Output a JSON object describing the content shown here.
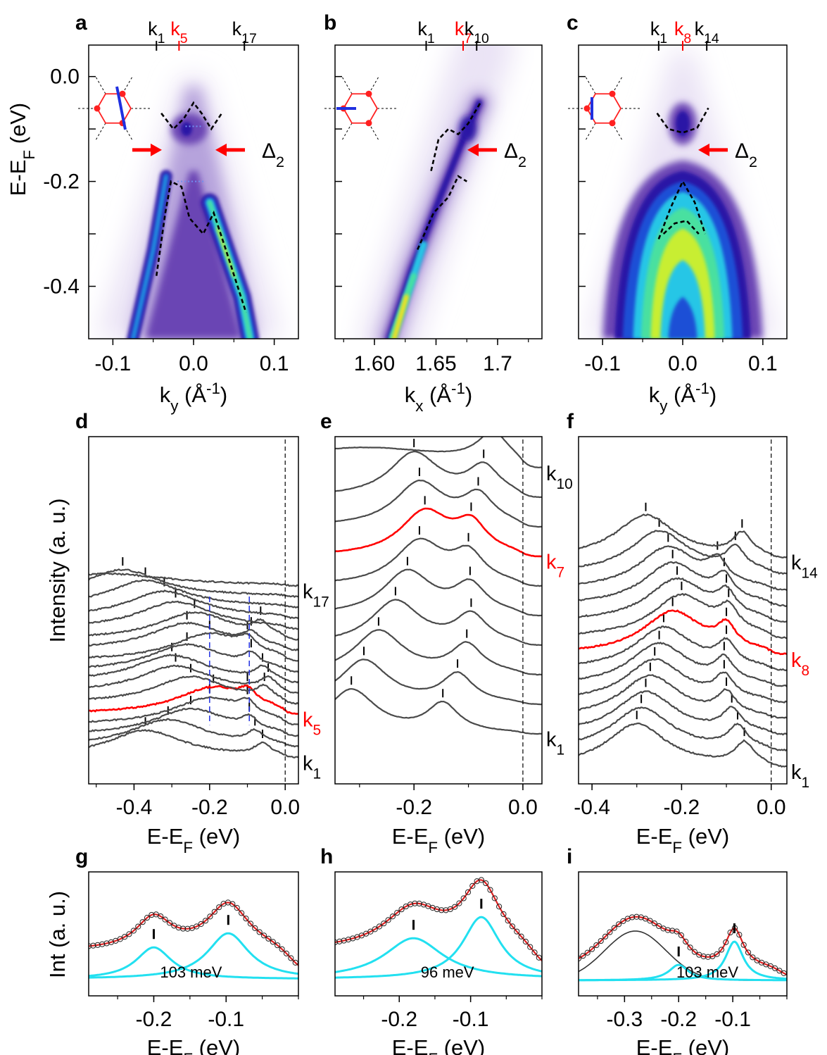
{
  "figure": {
    "panel_letters": [
      "a",
      "b",
      "c",
      "d",
      "e",
      "f",
      "g",
      "h",
      "i"
    ],
    "colors": {
      "axis": "#000000",
      "curve": "#4a4a4a",
      "highlight": "#ff0000",
      "fit_component": "#22e0f0",
      "fit_total": "#e02020",
      "background_fit": "#333333",
      "arrow": "#ff0000",
      "bz_hexagon": "#ff2020",
      "cut_line": "#2030e0",
      "band_dash": "#000000",
      "intensity_map": [
        "#ffffff",
        "#eae3f5",
        "#b6a3dc",
        "#6a44b4",
        "#2a12a6",
        "#1d4fd6",
        "#28c6e6",
        "#48e0a0",
        "#c8ee30",
        "#f2e020"
      ]
    },
    "labels": {
      "delta": "Δ",
      "delta_sub": "2",
      "ylabel_top": "E-E",
      "ylabel_top_sub": "F",
      "ylabel_top_unit": " (eV)",
      "ylabel_mid": "Intensity (a. u.)",
      "ylabel_bot": "Int (a. u.)",
      "energy_axis": "E-E",
      "energy_axis_sub": "F",
      "energy_axis_unit": " (eV)",
      "ky_axis": "k",
      "ky_axis_sub": "y",
      "kx_axis": "k",
      "kx_axis_sub": "x",
      "momentum_unit": " (Å",
      "momentum_unit_sup": "-1",
      "momentum_unit_close": ")"
    }
  },
  "chart_data": [
    {
      "panel": "a",
      "type": "heatmap",
      "xlabel": "ky (Å-1)",
      "ylabel": "E-EF (eV)",
      "xlim": [
        -0.13,
        0.13
      ],
      "ylim": [
        -0.5,
        0.06
      ],
      "xticks": [
        "-0.1",
        "0.0",
        "0.1"
      ],
      "xtick_values": [
        -0.1,
        0.0,
        0.1
      ],
      "yticks": [
        "0.0",
        "-0.2",
        "-0.4"
      ],
      "ytick_values": [
        0.0,
        -0.2,
        -0.4
      ],
      "top_markers": [
        {
          "label": "k",
          "sub": "1",
          "k": -0.046,
          "color": "#000000"
        },
        {
          "label": "k",
          "sub": "5",
          "k": -0.018,
          "color": "#ff0000"
        },
        {
          "label": "k",
          "sub": "17",
          "k": 0.063,
          "color": "#000000"
        }
      ],
      "gap_label_energy": -0.14,
      "band_energy_top": -0.06,
      "band_energy_bottom": -0.19,
      "bands": "two split cone branches below a gap, dispersion apex near ky = 0"
    },
    {
      "panel": "b",
      "type": "heatmap",
      "xlabel": "kx (Å-1)",
      "ylabel": "",
      "xlim": [
        1.568,
        1.736
      ],
      "ylim": [
        -0.5,
        0.06
      ],
      "xticks": [
        "1.60",
        "1.65",
        "1.7"
      ],
      "xtick_values": [
        1.6,
        1.65,
        1.7
      ],
      "top_markers": [
        {
          "label": "k",
          "sub": "1",
          "k": 1.642,
          "color": "#000000"
        },
        {
          "label": "k",
          "sub": "7",
          "k": 1.672,
          "color": "#ff0000"
        },
        {
          "label": "k",
          "sub": "10",
          "k": 1.683,
          "color": "#000000"
        }
      ],
      "gap_label_energy": -0.14,
      "bands": "single linear band crossing gap around kx ≈ 1.67"
    },
    {
      "panel": "c",
      "type": "heatmap",
      "xlabel": "ky (Å-1)",
      "ylabel": "",
      "xlim": [
        -0.13,
        0.13
      ],
      "ylim": [
        -0.5,
        0.06
      ],
      "xticks": [
        "-0.1",
        "0.0",
        "0.1"
      ],
      "xtick_values": [
        -0.1,
        0.0,
        0.1
      ],
      "top_markers": [
        {
          "label": "k",
          "sub": "1",
          "k": -0.03,
          "color": "#000000"
        },
        {
          "label": "k",
          "sub": "8",
          "k": 0.0,
          "color": "#ff0000"
        },
        {
          "label": "k",
          "sub": "14",
          "k": 0.03,
          "color": "#000000"
        }
      ],
      "gap_label_energy": -0.14,
      "bands": "hole-like band top at -0.2 eV, electron-like pocket near -0.1 eV"
    },
    {
      "panel": "d",
      "type": "line",
      "xlabel": "E-EF (eV)",
      "ylabel": "Intensity (a. u.)",
      "xlim": [
        -0.52,
        0.035
      ],
      "xticks": [
        "-0.4",
        "-0.2",
        "0.0"
      ],
      "xtick_values": [
        -0.4,
        -0.2,
        0.0
      ],
      "n_curves": 17,
      "highlight_index": 5,
      "curve_labels": [
        {
          "index": 1,
          "label": "k",
          "sub": "1",
          "color": "#000000"
        },
        {
          "index": 5,
          "label": "k",
          "sub": "5",
          "color": "#ff0000"
        },
        {
          "index": 17,
          "label": "k",
          "sub": "17",
          "color": "#000000"
        }
      ],
      "peak_positions_eV": [
        [
          -0.37,
          -0.06
        ],
        [
          -0.31,
          -0.08
        ],
        [
          -0.25,
          -0.095
        ],
        [
          -0.2,
          -0.1
        ],
        [
          -0.19,
          -0.1
        ],
        [
          -0.25,
          -0.055
        ],
        [
          -0.29,
          -0.045
        ],
        [
          -0.3,
          -0.06
        ],
        [
          -0.26,
          -0.09
        ],
        [
          -0.2,
          -0.1
        ],
        [
          -0.26,
          -0.09
        ],
        [
          -0.24,
          -0.065
        ],
        [
          -0.29,
          null
        ],
        [
          -0.32,
          null
        ],
        [
          -0.37,
          null
        ],
        [
          -0.43,
          null
        ],
        [
          null,
          null
        ]
      ],
      "guide_lines_eV": [
        -0.2,
        -0.095
      ]
    },
    {
      "panel": "e",
      "type": "line",
      "xlabel": "E-EF (eV)",
      "ylabel": "",
      "xlim": [
        -0.345,
        0.035
      ],
      "xticks": [
        "-0.2",
        "0.0"
      ],
      "xtick_values": [
        -0.2,
        0.0
      ],
      "n_curves": 10,
      "highlight_index": 7,
      "curve_labels": [
        {
          "index": 1,
          "label": "k",
          "sub": "1",
          "color": "#000000"
        },
        {
          "index": 7,
          "label": "k",
          "sub": "7",
          "color": "#ff0000"
        },
        {
          "index": 10,
          "label": "k",
          "sub": "10",
          "color": "#000000"
        }
      ],
      "peak_positions_eV": [
        [
          -0.315,
          -0.147
        ],
        [
          -0.292,
          -0.12
        ],
        [
          -0.265,
          -0.103
        ],
        [
          -0.234,
          -0.095
        ],
        [
          -0.212,
          -0.097
        ],
        [
          -0.19,
          -0.1
        ],
        [
          -0.18,
          -0.095
        ],
        [
          -0.19,
          -0.082
        ],
        [
          -0.2,
          -0.072
        ],
        [
          null,
          -0.055
        ]
      ]
    },
    {
      "panel": "f",
      "type": "line",
      "xlabel": "E-EF (eV)",
      "ylabel": "",
      "xlim": [
        -0.43,
        0.035
      ],
      "xticks": [
        "-0.4",
        "-0.2",
        "0.0"
      ],
      "xtick_values": [
        -0.4,
        -0.2,
        0.0
      ],
      "n_curves": 14,
      "highlight_index": 8,
      "curve_labels": [
        {
          "index": 1,
          "label": "k",
          "sub": "1",
          "color": "#000000"
        },
        {
          "index": 8,
          "label": "k",
          "sub": "8",
          "color": "#ff0000"
        },
        {
          "index": 14,
          "label": "k",
          "sub": "14",
          "color": "#000000"
        }
      ],
      "peak_positions_eV": [
        [
          -0.3,
          -0.06
        ],
        [
          -0.29,
          -0.075
        ],
        [
          -0.28,
          -0.088
        ],
        [
          -0.27,
          -0.1
        ],
        [
          -0.26,
          -0.105
        ],
        [
          -0.25,
          -0.105
        ],
        [
          -0.24,
          -0.1
        ],
        [
          -0.22,
          -0.1
        ],
        [
          -0.2,
          -0.095
        ],
        [
          -0.21,
          -0.1
        ],
        [
          -0.22,
          -0.105
        ],
        [
          -0.23,
          -0.12
        ],
        [
          -0.25,
          -0.08
        ],
        [
          -0.28,
          -0.065
        ]
      ]
    },
    {
      "panel": "g",
      "type": "line",
      "xlabel": "E-EF (eV)",
      "ylabel": "Int (a. u.)",
      "xlim": [
        -0.29,
        0.0
      ],
      "xticks": [
        "-0.2",
        "-0.1"
      ],
      "xtick_values": [
        -0.2,
        -0.1
      ],
      "peaks_eV": [
        -0.2,
        -0.097
      ],
      "annotation": "103 meV",
      "components": 2,
      "background": false
    },
    {
      "panel": "h",
      "type": "line",
      "xlabel": "E-EF (eV)",
      "ylabel": "",
      "xlim": [
        -0.29,
        0.0
      ],
      "xticks": [
        "-0.2",
        "-0.1"
      ],
      "xtick_values": [
        -0.2,
        -0.1
      ],
      "peaks_eV": [
        -0.18,
        -0.085
      ],
      "annotation": "96 meV",
      "components": 2,
      "background": false
    },
    {
      "panel": "i",
      "type": "line",
      "xlabel": "E-EF (eV)",
      "ylabel": "",
      "xlim": [
        -0.385,
        0.0
      ],
      "xticks": [
        "-0.3",
        "-0.2",
        "-0.1"
      ],
      "xtick_values": [
        -0.3,
        -0.2,
        -0.1
      ],
      "peaks_eV": [
        -0.2,
        -0.097
      ],
      "annotation": "103 meV",
      "components": 2,
      "background": true,
      "background_peak_eV": -0.28
    }
  ]
}
